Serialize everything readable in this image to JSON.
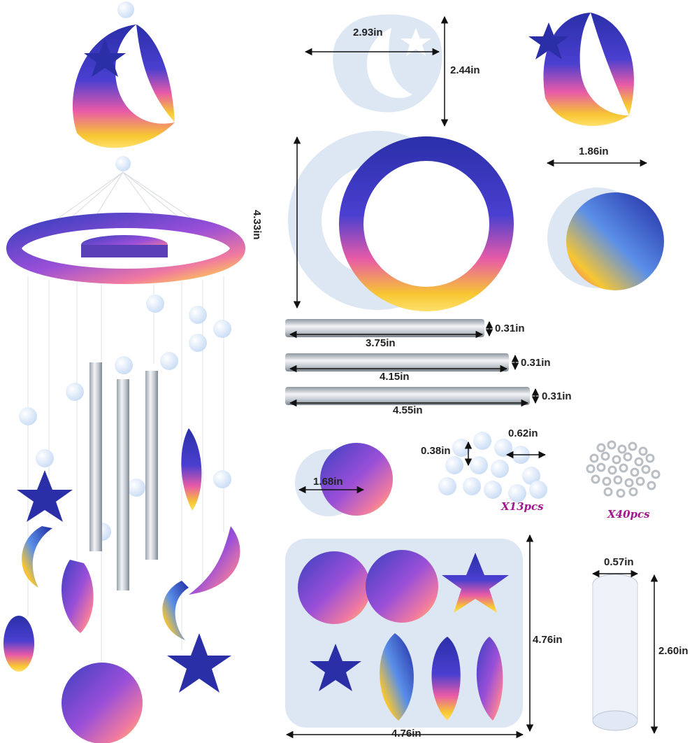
{
  "dimensions": {
    "moon_mold_width": "2.93in",
    "moon_mold_height": "2.44in",
    "ring_mold_diameter": "4.33in",
    "round_mold_diameter": "1.86in",
    "tube1_length": "3.75in",
    "tube1_diameter": "0.31in",
    "tube2_length": "4.15in",
    "tube2_diameter": "0.31in",
    "tube3_length": "4.55in",
    "tube3_diameter": "0.31in",
    "small_round_mold_diameter": "1.68in",
    "bead_height": "0.38in",
    "bead_width": "0.62in",
    "pendant_mold_height": "4.76in",
    "pendant_mold_width": "4.76in",
    "thread_spool_width": "0.57in",
    "thread_spool_height": "2.60in"
  },
  "counts": {
    "beads": "X13pcs",
    "jump_rings": "X40pcs"
  },
  "colors": {
    "galaxy_blue": "#2a2fa8",
    "galaxy_purple": "#8a3fd0",
    "galaxy_pink": "#e85aa8",
    "galaxy_yellow": "#f7c632",
    "mold_silicone": "#dde6f3",
    "count_text": "#a0168f"
  }
}
